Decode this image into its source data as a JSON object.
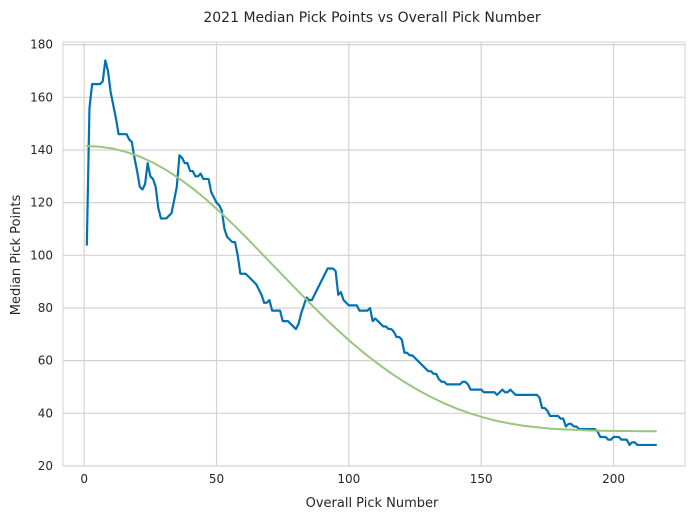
{
  "chart_data": {
    "type": "line",
    "title": "2021 Median Pick Points vs Overall Pick Number",
    "xlabel": "Overall Pick Number",
    "ylabel": "Median Pick Points",
    "xlim": [
      -8,
      227
    ],
    "ylim": [
      20,
      181
    ],
    "xticks": [
      0,
      50,
      100,
      150,
      200
    ],
    "yticks": [
      20,
      40,
      60,
      80,
      100,
      120,
      140,
      160,
      180
    ],
    "grid": true,
    "colors": {
      "median": "#0072b2",
      "fit": "#99c67e",
      "grid": "#d3d3d3",
      "background": "#ffffff"
    },
    "series": [
      {
        "key": "median",
        "x": [
          1,
          2,
          3,
          4,
          5,
          6,
          7,
          8,
          9,
          10,
          11,
          12,
          13,
          14,
          15,
          16,
          17,
          18,
          19,
          20,
          21,
          22,
          23,
          24,
          25,
          26,
          27,
          28,
          29,
          30,
          31,
          32,
          33,
          34,
          35,
          36,
          37,
          38,
          39,
          40,
          41,
          42,
          43,
          44,
          45,
          46,
          47,
          48,
          49,
          50,
          51,
          52,
          53,
          54,
          55,
          56,
          57,
          58,
          59,
          60,
          61,
          62,
          63,
          64,
          65,
          66,
          67,
          68,
          69,
          70,
          71,
          72,
          73,
          74,
          75,
          76,
          77,
          78,
          79,
          80,
          81,
          82,
          83,
          84,
          85,
          86,
          87,
          88,
          89,
          90,
          91,
          92,
          93,
          94,
          95,
          96,
          97,
          98,
          99,
          100,
          101,
          102,
          103,
          104,
          105,
          106,
          107,
          108,
          109,
          110,
          111,
          112,
          113,
          114,
          115,
          116,
          117,
          118,
          119,
          120,
          121,
          122,
          123,
          124,
          125,
          126,
          127,
          128,
          129,
          130,
          131,
          132,
          133,
          134,
          135,
          136,
          137,
          138,
          139,
          140,
          141,
          142,
          143,
          144,
          145,
          146,
          147,
          148,
          149,
          150,
          151,
          152,
          153,
          154,
          155,
          156,
          157,
          158,
          159,
          160,
          161,
          162,
          163,
          164,
          165,
          166,
          167,
          168,
          169,
          170,
          171,
          172,
          173,
          174,
          175,
          176,
          177,
          178,
          179,
          180,
          181,
          182,
          183,
          184,
          185,
          186,
          187,
          188,
          189,
          190,
          191,
          192,
          193,
          194,
          195,
          196,
          197,
          198,
          199,
          200,
          201,
          202,
          203,
          204,
          205,
          206,
          207,
          208,
          209,
          210,
          211,
          212,
          213,
          214,
          215,
          216
        ],
        "y": [
          104,
          156,
          165,
          165,
          165,
          165,
          166,
          174,
          170,
          162,
          157,
          152,
          146,
          146,
          146,
          146,
          144,
          143,
          137,
          132,
          126,
          125,
          127,
          135,
          130,
          129,
          126,
          118,
          114,
          114,
          114,
          115,
          116,
          121,
          126,
          138,
          137,
          135,
          135,
          132,
          132,
          130,
          130,
          131,
          129,
          129,
          129,
          124,
          122,
          120,
          119,
          117,
          110,
          107,
          106,
          105,
          105,
          100,
          93,
          93,
          93,
          92,
          91,
          90,
          89,
          87,
          85,
          82,
          82,
          83,
          79,
          79,
          79,
          79,
          75,
          75,
          75,
          74,
          73,
          72,
          74,
          78,
          81,
          84,
          83,
          83,
          85,
          87,
          89,
          91,
          93,
          95,
          95,
          95,
          94,
          85,
          86,
          83,
          82,
          81,
          81,
          81,
          81,
          79,
          79,
          79,
          79,
          80,
          75,
          76,
          75,
          74,
          73,
          73,
          72,
          72,
          71,
          69,
          69,
          68,
          63,
          63,
          62,
          62,
          61,
          60,
          59,
          58,
          57,
          56,
          56,
          55,
          55,
          53,
          52,
          52,
          51,
          51,
          51,
          51,
          51,
          51,
          52,
          52,
          51,
          49,
          49,
          49,
          49,
          49,
          48,
          48,
          48,
          48,
          48,
          47,
          48,
          49,
          48,
          48,
          49,
          48,
          47,
          47,
          47,
          47,
          47,
          47,
          47,
          47,
          47,
          46,
          42,
          42,
          41,
          39,
          39,
          39,
          39,
          38,
          38,
          35,
          36,
          36,
          35,
          35,
          34,
          34,
          34,
          34,
          34,
          34,
          34,
          33,
          31,
          31,
          31,
          30,
          30,
          31,
          31,
          31,
          30,
          30,
          30,
          28,
          29,
          29,
          28,
          28,
          28,
          28,
          28,
          28,
          28,
          28
        ]
      },
      {
        "key": "fit",
        "x": [
          1,
          6,
          11,
          16,
          21,
          26,
          31,
          36,
          41,
          46,
          51,
          56,
          61,
          66,
          71,
          76,
          81,
          86,
          91,
          96,
          101,
          106,
          111,
          116,
          121,
          126,
          131,
          136,
          141,
          146,
          151,
          156,
          161,
          166,
          171,
          176,
          181,
          186,
          191,
          196,
          201,
          206,
          211,
          216
        ],
        "y": [
          141.5,
          141.2,
          140.5,
          139.2,
          137.5,
          135.2,
          132.4,
          129.1,
          125.4,
          121.3,
          116.8,
          112.0,
          107.0,
          101.8,
          96.6,
          91.4,
          86.2,
          81.1,
          76.1,
          71.4,
          66.9,
          62.7,
          58.8,
          55.2,
          51.9,
          48.9,
          46.2,
          43.8,
          41.7,
          39.9,
          38.4,
          37.1,
          36.1,
          35.3,
          34.7,
          34.2,
          33.9,
          33.7,
          33.5,
          33.4,
          33.3,
          33.3,
          33.2,
          33.2
        ]
      }
    ]
  }
}
